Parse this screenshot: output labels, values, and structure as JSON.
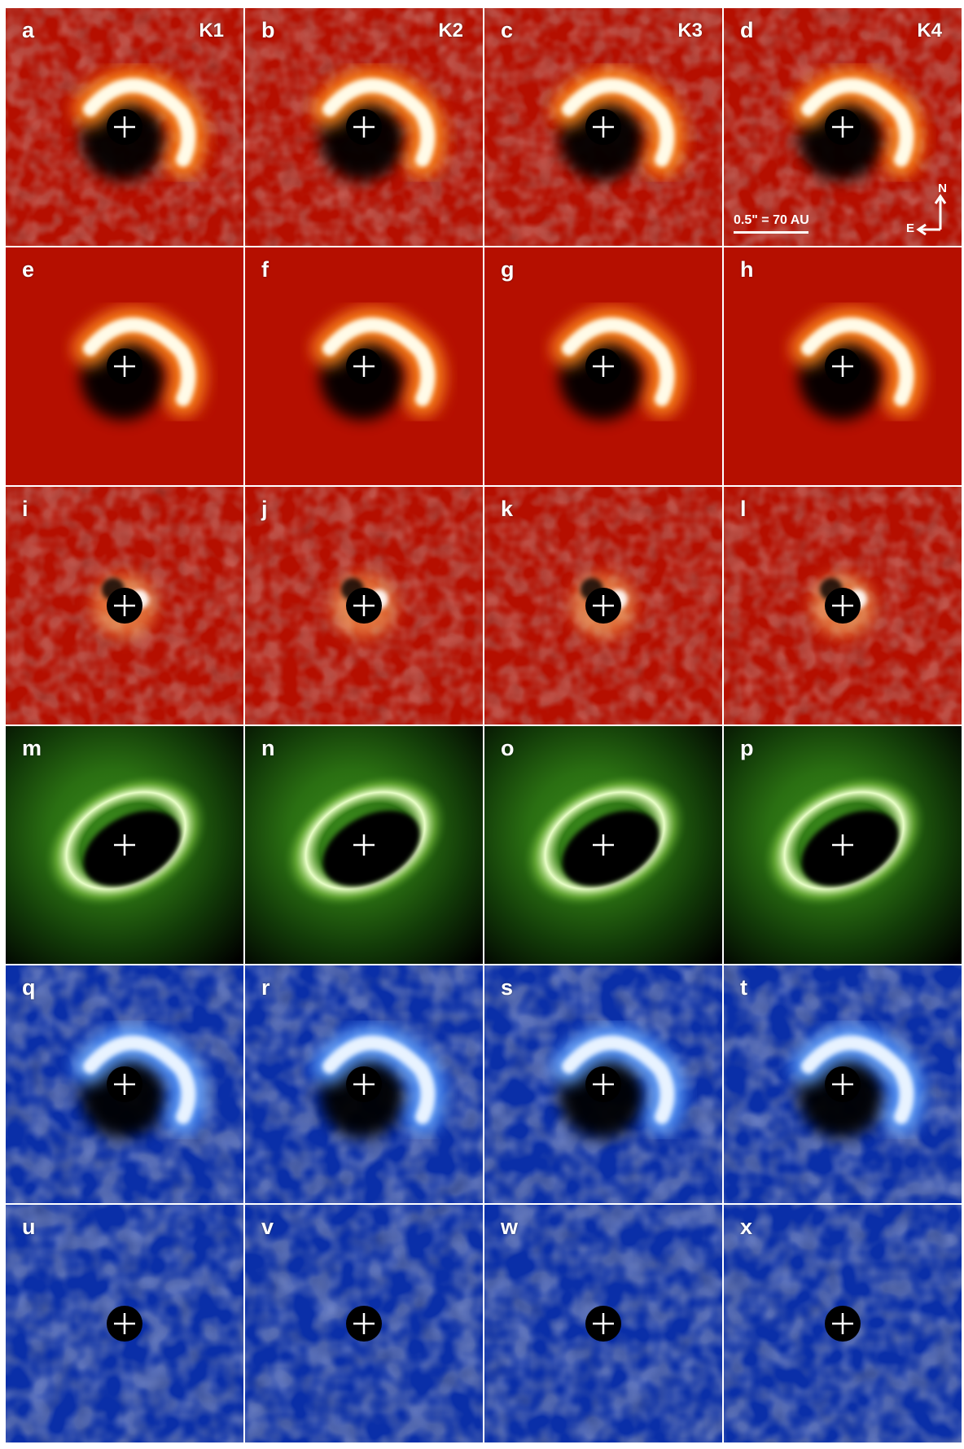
{
  "panels": [
    {
      "letter": "a",
      "band": "K1",
      "cmap": "red",
      "kind": "obs"
    },
    {
      "letter": "b",
      "band": "K2",
      "cmap": "red",
      "kind": "obs"
    },
    {
      "letter": "c",
      "band": "K3",
      "cmap": "red",
      "kind": "obs"
    },
    {
      "letter": "d",
      "band": "K4",
      "cmap": "red",
      "kind": "obs"
    },
    {
      "letter": "e",
      "cmap": "red",
      "kind": "model"
    },
    {
      "letter": "f",
      "cmap": "red",
      "kind": "model"
    },
    {
      "letter": "g",
      "cmap": "red",
      "kind": "model"
    },
    {
      "letter": "h",
      "cmap": "red",
      "kind": "model"
    },
    {
      "letter": "i",
      "cmap": "red",
      "kind": "residual"
    },
    {
      "letter": "j",
      "cmap": "red",
      "kind": "residual"
    },
    {
      "letter": "k",
      "cmap": "red",
      "kind": "residual"
    },
    {
      "letter": "l",
      "cmap": "red",
      "kind": "residual"
    },
    {
      "letter": "m",
      "cmap": "green",
      "kind": "disk-model"
    },
    {
      "letter": "n",
      "cmap": "green",
      "kind": "disk-model"
    },
    {
      "letter": "o",
      "cmap": "green",
      "kind": "disk-model"
    },
    {
      "letter": "p",
      "cmap": "green",
      "kind": "disk-model"
    },
    {
      "letter": "q",
      "cmap": "blue",
      "kind": "obs"
    },
    {
      "letter": "r",
      "cmap": "blue",
      "kind": "obs"
    },
    {
      "letter": "s",
      "cmap": "blue",
      "kind": "obs"
    },
    {
      "letter": "t",
      "cmap": "blue",
      "kind": "obs"
    },
    {
      "letter": "u",
      "cmap": "blue",
      "kind": "residual"
    },
    {
      "letter": "v",
      "cmap": "blue",
      "kind": "residual"
    },
    {
      "letter": "w",
      "cmap": "blue",
      "kind": "residual"
    },
    {
      "letter": "x",
      "cmap": "blue",
      "kind": "residual"
    }
  ],
  "scale_bar": {
    "label": "0.5\" = 70 AU"
  },
  "compass": {
    "north": "N",
    "east": "E"
  },
  "colors": {
    "red_background": "#b50f00",
    "green_background": "#000000",
    "blue_background": "#0a2fa8",
    "core": "#000000",
    "marker": "#ffffff"
  }
}
